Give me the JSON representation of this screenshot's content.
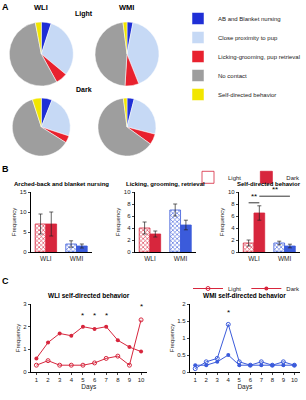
{
  "chart_data": [
    {
      "type": "pie",
      "panel": "A",
      "columns": [
        "WLI",
        "WMI"
      ],
      "rows": [
        "Light",
        "Dark"
      ],
      "labels": [
        "AB and Blanket nursing",
        "Close proximity to pup",
        "Licking-grooming, pup retrieval",
        "No contact",
        "Self-directed behavior"
      ],
      "colors": [
        "#1f2fd6",
        "#c6d9f5",
        "#e8212e",
        "#9e9e9e",
        "#f2e600"
      ],
      "legend": "top right",
      "pies": [
        {
          "column": "WLI",
          "row": "Light",
          "values": [
            5,
            31,
            6,
            55,
            3
          ]
        },
        {
          "column": "WMI",
          "row": "Light",
          "values": [
            3,
            41,
            7,
            47,
            2
          ]
        },
        {
          "column": "WLI",
          "row": "Dark",
          "values": [
            6,
            24,
            4,
            61,
            5
          ]
        },
        {
          "column": "WMI",
          "row": "Dark",
          "values": [
            4,
            25,
            6,
            63,
            2
          ]
        }
      ]
    },
    {
      "type": "bar",
      "panel": "B",
      "title": "Arched-back and blanket nursing",
      "y_label": "Frequency",
      "categories": [
        "WLI",
        "WMI"
      ],
      "ylim": [
        0,
        15
      ],
      "yticks": [
        0,
        5,
        10,
        15
      ],
      "grid": false,
      "series": [
        {
          "name": "Light",
          "marker": "hatched",
          "colors": [
            "#d7263d",
            "#3b5bdb"
          ],
          "values": [
            7,
            2
          ],
          "errors": [
            2.5,
            0.8
          ]
        },
        {
          "name": "Dark",
          "marker": "solid",
          "colors": [
            "#d7263d",
            "#3b5bdb"
          ],
          "values": [
            7,
            1.5
          ],
          "errors": [
            3,
            0.5
          ]
        }
      ]
    },
    {
      "type": "bar",
      "title": "Licking, grooming, retrieval",
      "y_label": "Frequency",
      "categories": [
        "WLI",
        "WMI"
      ],
      "ylim": [
        0,
        10
      ],
      "yticks": [
        0,
        2,
        4,
        6,
        8,
        10
      ],
      "grid": false,
      "series": [
        {
          "name": "Light",
          "marker": "hatched",
          "colors": [
            "#d7263d",
            "#3b5bdb"
          ],
          "values": [
            4,
            7
          ],
          "errors": [
            1,
            1
          ]
        },
        {
          "name": "Dark",
          "marker": "solid",
          "colors": [
            "#d7263d",
            "#3b5bdb"
          ],
          "values": [
            3,
            4.5
          ],
          "errors": [
            0.5,
            0.8
          ]
        }
      ]
    },
    {
      "type": "bar",
      "title": "Self-directed behavior",
      "y_label": "Frequency",
      "categories": [
        "WLI",
        "WMI"
      ],
      "ylim": [
        0,
        10
      ],
      "yticks": [
        0,
        2,
        4,
        6,
        8,
        10
      ],
      "grid": false,
      "legend": "top right",
      "series": [
        {
          "name": "Light",
          "marker": "hatched",
          "colors": [
            "#d7263d",
            "#3b5bdb"
          ],
          "values": [
            1.5,
            1.5
          ],
          "errors": [
            0.5,
            0.3
          ]
        },
        {
          "name": "Dark",
          "marker": "solid",
          "colors": [
            "#d7263d",
            "#3b5bdb"
          ],
          "values": [
            6.5,
            1
          ],
          "errors": [
            1.2,
            0.3
          ]
        }
      ],
      "brackets": [
        {
          "text": "**",
          "between": [
            [
              "WLI",
              "Light"
            ],
            [
              "WLI",
              "Dark"
            ]
          ],
          "y": 8.2
        },
        {
          "text": "**",
          "between": [
            [
              "WLI",
              "Dark"
            ],
            [
              "WMI",
              "Dark"
            ]
          ],
          "y": 9.3
        }
      ]
    },
    {
      "type": "line",
      "panel": "C",
      "title": "WLI self-directed behavior",
      "x_label": "Days",
      "y_label": "Frequency",
      "x": [
        1,
        2,
        3,
        4,
        5,
        6,
        7,
        8,
        9,
        10
      ],
      "xlim": [
        0.5,
        10.5
      ],
      "xticks": [
        1,
        2,
        3,
        4,
        5,
        6,
        7,
        8,
        9,
        10
      ],
      "ylim": [
        0,
        3
      ],
      "yticks": [
        0,
        1,
        2,
        3
      ],
      "grid": false,
      "legend": "top right",
      "series": [
        {
          "name": "Light",
          "color": "#d7263d",
          "marker": "open-circle",
          "line_style": "solid",
          "values": [
            0.3,
            0.5,
            0.3,
            0.3,
            0.3,
            0.4,
            0.6,
            0.7,
            0.3,
            2.3
          ]
        },
        {
          "name": "Dark",
          "color": "#d7263d",
          "marker": "circle",
          "line_style": "solid",
          "values": [
            0.6,
            1.3,
            1.7,
            1.6,
            2.0,
            1.9,
            2.0,
            1.4,
            1.1,
            0.9
          ]
        }
      ],
      "annotations": [
        {
          "text": "*",
          "x": 5,
          "y": 2.2
        },
        {
          "text": "*",
          "x": 6,
          "y": 2.2
        },
        {
          "text": "*",
          "x": 7,
          "y": 2.2
        },
        {
          "text": "*",
          "x": 10,
          "y": 2.6
        }
      ]
    },
    {
      "type": "line",
      "title": "WMI self-directed behavior",
      "x_label": "Days",
      "y_label": "Frequency",
      "x": [
        1,
        2,
        3,
        4,
        5,
        6,
        7,
        8,
        9,
        10
      ],
      "xlim": [
        0.5,
        10.5
      ],
      "xticks": [
        1,
        2,
        3,
        4,
        5,
        6,
        7,
        8,
        9,
        10
      ],
      "ylim": [
        0,
        2
      ],
      "yticks": [
        0,
        0.5,
        1,
        1.5,
        2
      ],
      "grid": false,
      "series": [
        {
          "name": "Light",
          "color": "#3b5bdb",
          "marker": "open-circle",
          "line_style": "solid",
          "values": [
            0.1,
            0.3,
            0.4,
            1.4,
            0.3,
            0.2,
            0.3,
            0.2,
            0.3,
            0.2
          ]
        },
        {
          "name": "Dark",
          "color": "#3b5bdb",
          "marker": "circle",
          "line_style": "solid",
          "values": [
            0.2,
            0.2,
            0.3,
            0.5,
            0.2,
            0.2,
            0.2,
            0.2,
            0.2,
            0.2
          ]
        }
      ],
      "annotations": [
        {
          "text": "*",
          "x": 4,
          "y": 1.55
        }
      ]
    }
  ]
}
